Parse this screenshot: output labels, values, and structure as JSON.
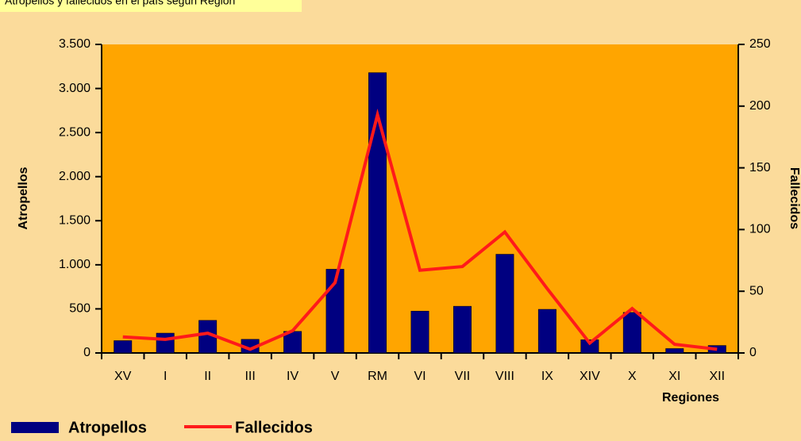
{
  "chart_data": {
    "type": "bar_line",
    "title": "Atropellos y fallecidos en el país según Región",
    "x_label": "Regiones",
    "y_label": "Atropellos",
    "y2_label": "Fallecidos",
    "categories": [
      "XV",
      "I",
      "II",
      "III",
      "IV",
      "V",
      "RM",
      "VI",
      "VII",
      "VIII",
      "IX",
      "XIV",
      "X",
      "XI",
      "XII"
    ],
    "series": [
      {
        "name": "Atropellos",
        "color": "#000080",
        "values": [
          140,
          225,
          370,
          155,
          245,
          950,
          3180,
          475,
          530,
          1120,
          495,
          150,
          460,
          50,
          85
        ]
      },
      {
        "name": "Fallecidos",
        "color": "#ff1a1a",
        "axis": "y2",
        "values": [
          13,
          11,
          16,
          3,
          18,
          57,
          193,
          67,
          70,
          98,
          52,
          8,
          36,
          7,
          3
        ]
      }
    ],
    "ylim": [
      0,
      3500
    ],
    "yticks": [
      0,
      500,
      {
        "value": 1000,
        "label": "1.000"
      },
      {
        "value": 1500,
        "label": "1.500"
      },
      {
        "value": 2000,
        "label": "2.000"
      },
      {
        "value": 2500,
        "label": "2.500"
      },
      {
        "value": 3000,
        "label": "3.000"
      },
      {
        "value": 3500,
        "label": "3.500"
      }
    ],
    "y2lim": [
      0,
      250
    ],
    "y2ticks": [
      0,
      50,
      100,
      150,
      200,
      250
    ],
    "plot_background": "#ffa500"
  }
}
